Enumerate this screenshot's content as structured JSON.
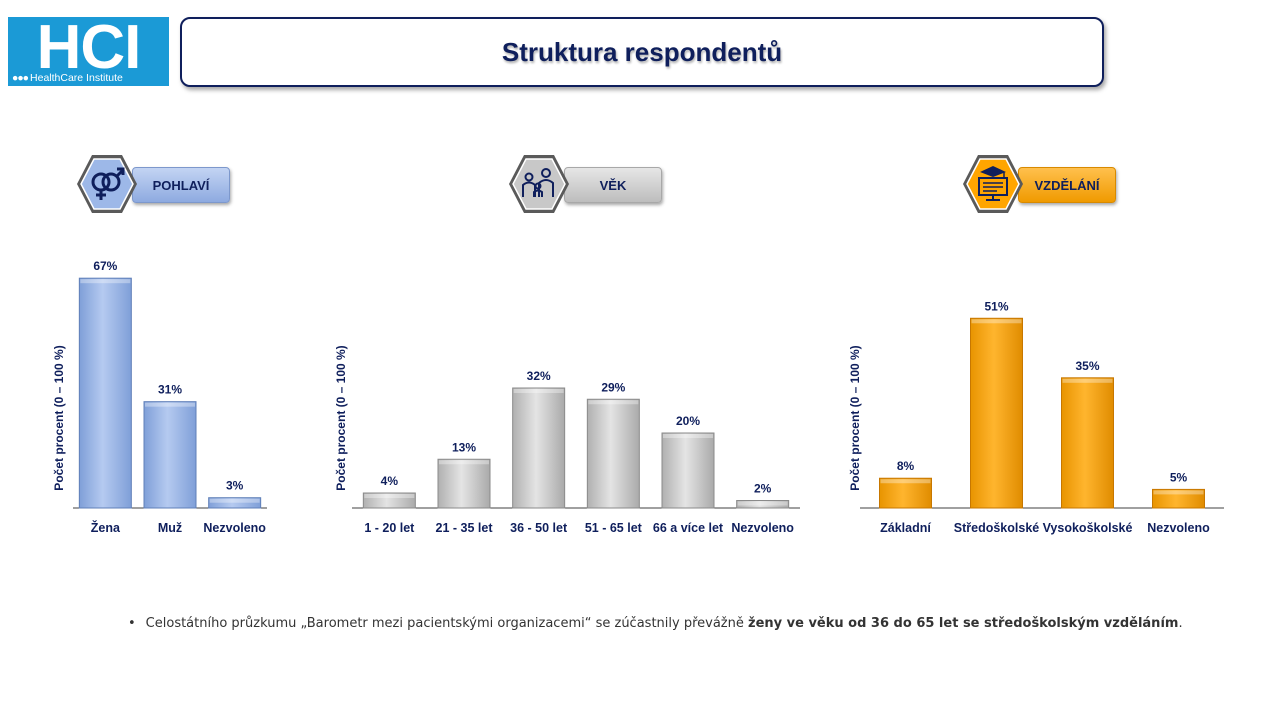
{
  "logo": {
    "letters": "HCI",
    "dots": "●●●",
    "subtitle": "HealthCare Institute"
  },
  "title": "Struktura respondentů",
  "badges": [
    {
      "label": "POHLAVÍ",
      "icon": "gender-symbols-icon",
      "color": "#9db8e8"
    },
    {
      "label": "VĚK",
      "icon": "family-people-icon",
      "color": "#c8c8c8"
    },
    {
      "label": "VZDĚLÁNÍ",
      "icon": "graduation-cap-computer-icon",
      "color": "#ffa500"
    }
  ],
  "footnote": {
    "bullet": "•",
    "text": "Celostátního průzkumu  „Barometr mezi pacientskými organizacemi“ se zúčastnily převážně ",
    "bold": "ženy ve věku od 36 do 65 let se středoškolským vzděláním",
    "end": "."
  },
  "chart_data": [
    {
      "type": "bar",
      "title": "",
      "ylabel": "Počet procent  (0 – 100 %)",
      "xlabel": "",
      "ylim": [
        0,
        100
      ],
      "categories": [
        "Žena",
        "Muž",
        "Nezvoleno"
      ],
      "values": [
        67,
        31,
        3
      ],
      "data_labels": [
        "67%",
        "31%",
        "3%"
      ],
      "color": "#9db8e8",
      "grid": false
    },
    {
      "type": "bar",
      "title": "",
      "ylabel": "Počet procent  (0 – 100 %)",
      "xlabel": "",
      "ylim": [
        0,
        100
      ],
      "categories": [
        "1 - 20 let",
        "21 - 35 let",
        "36 - 50 let",
        "51 - 65 let",
        "66 a více let",
        "Nezvoleno"
      ],
      "values": [
        4,
        13,
        32,
        29,
        20,
        2
      ],
      "data_labels": [
        "4%",
        "13%",
        "32%",
        "29%",
        "20%",
        "2%"
      ],
      "color": "#c8c8c8",
      "grid": false
    },
    {
      "type": "bar",
      "title": "",
      "ylabel": "Počet procent  (0 – 100 %)",
      "xlabel": "",
      "ylim": [
        0,
        100
      ],
      "categories": [
        "Základní",
        "Středoškolské",
        "Vysokoškolské",
        "Nezvoleno"
      ],
      "values": [
        8,
        51,
        35,
        5
      ],
      "data_labels": [
        "8%",
        "51%",
        "35%",
        "5%"
      ],
      "color": "#ffa500",
      "grid": false
    }
  ]
}
